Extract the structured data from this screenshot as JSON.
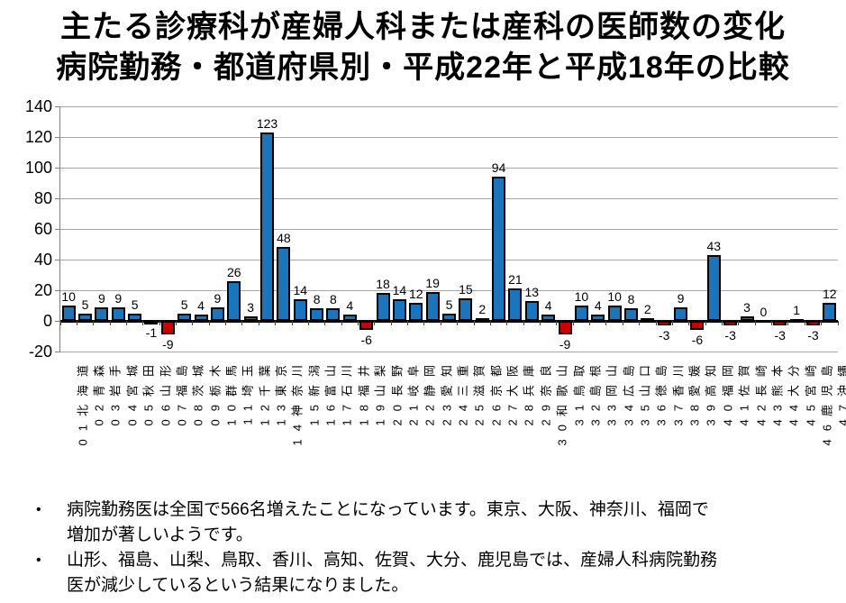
{
  "title": {
    "line1": "主たる診療科が産婦人科または産科の医師数の変化",
    "line2": "病院勤務・都道府県別・平成22年と平成18年の比較"
  },
  "chart_data": {
    "type": "bar",
    "title": "主たる診療科が産婦人科または産科の医師数の変化（病院勤務・都道府県別・平成22年と平成18年の比較）",
    "categories": [
      "01北海道",
      "02青森",
      "03岩手",
      "04宮城",
      "05秋田",
      "06山形",
      "07福島",
      "08茨城",
      "09栃木",
      "10群馬",
      "11埼玉",
      "12千葉",
      "13東京",
      "14神奈川",
      "15新潟",
      "16富山",
      "17石川",
      "18福井",
      "19山梨",
      "20長野",
      "21岐阜",
      "22静岡",
      "23愛知",
      "24三重",
      "25滋賀",
      "26京都",
      "27大阪",
      "28兵庫",
      "29奈良",
      "30和歌山",
      "31鳥取",
      "32島根",
      "33岡山",
      "34広島",
      "35山口",
      "36徳島",
      "37香川",
      "38愛媛",
      "39高知",
      "40福岡",
      "41佐賀",
      "42長崎",
      "43熊本",
      "44大分",
      "45宮崎",
      "46鹿児島",
      "47沖縄"
    ],
    "values": [
      10,
      5,
      9,
      9,
      5,
      -1,
      -9,
      5,
      4,
      9,
      26,
      3,
      123,
      48,
      14,
      8,
      8,
      4,
      -6,
      18,
      14,
      12,
      19,
      5,
      15,
      2,
      94,
      21,
      13,
      4,
      -9,
      10,
      4,
      10,
      8,
      2,
      -3,
      9,
      -6,
      43,
      -3,
      3,
      0,
      -3,
      1,
      -3,
      12
    ],
    "yticks": [
      140,
      120,
      100,
      80,
      60,
      40,
      20,
      0,
      -20
    ],
    "ylim": [
      -20,
      140
    ],
    "xlabel": "",
    "ylabel": "",
    "grid": "horizontal",
    "legend": "none",
    "data_labels": "all",
    "colors": {
      "positive_bar": "#1b75bc",
      "negative_bar": "#cc0000",
      "bar_border": "#000000",
      "gridline": "#a6a6a6",
      "axis": "#7f7f7f",
      "zero_line": "#000000",
      "text": "#000000"
    }
  },
  "notes": {
    "bullet1": "病院勤務医は全国で566名増えたことになっています。東京、大阪、神奈川、福岡で\n増加が著しいようです。",
    "bullet2": "山形、福島、山梨、鳥取、香川、高知、佐賀、大分、鹿児島では、産婦人科病院勤務\n医が減少しているという結果になりました。"
  }
}
